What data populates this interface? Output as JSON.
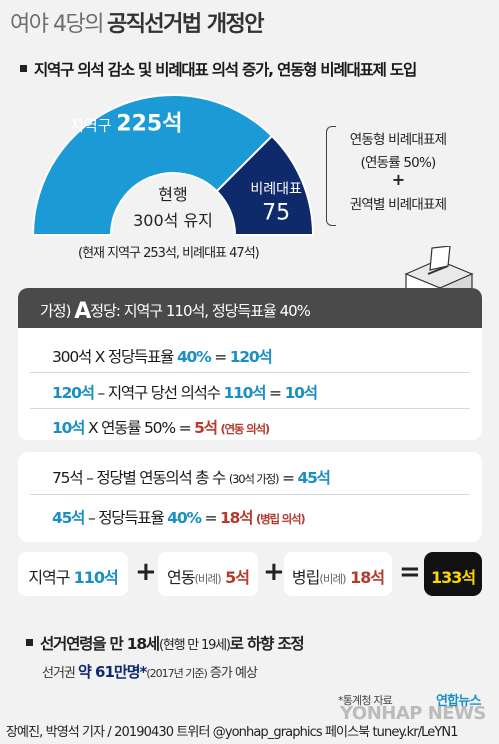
{
  "title": {
    "prefix": "여야 4당의",
    "main": "공직선거법 개정안"
  },
  "section1": {
    "heading": "지역구 의석 감소 및 비례대표 의석 증가, 연동형 비례대표제 도입"
  },
  "chart_data": {
    "type": "pie",
    "title": "",
    "center_label_line1": "현행",
    "center_label_line2": "300석 유지",
    "total": 300,
    "slices": [
      {
        "name": "지역구",
        "value": 225,
        "label": "지역구",
        "value_label": "225석",
        "color": "#1b9ad6"
      },
      {
        "name": "비례대표",
        "value": 75,
        "label": "비례대표",
        "value_label": "75",
        "color": "#0f2a6b"
      }
    ],
    "current_note": "(현재 지역구 253석, 비례대표 47석)"
  },
  "side_note": {
    "line1": "연동형 비례대표제",
    "line2": "(연동률 50%)",
    "plus": "+",
    "line3": "권역별 비례대표제"
  },
  "hypothesis": {
    "prefix": "가정)",
    "party": "A",
    "party_suffix": "정당",
    "detail": ": 지역구 110석, 정당득표율 40%"
  },
  "equations": [
    {
      "a": "300석 X 정당득표율 ",
      "b": "40%",
      "c": " = ",
      "d": "120석",
      "e": ""
    },
    {
      "a": "120석",
      "b": " – 지역구 당선 의석수 ",
      "c": "110석",
      "d": " = ",
      "e": "10석"
    },
    {
      "a": "10석",
      "b": " X 연동률 50% = ",
      "c": "5석",
      "d": "(연동 의석)",
      "e": ""
    },
    {
      "a": "75석 – 정당별 연동의석 총 수 ",
      "b": "(30석 가정)",
      "c": " = ",
      "d": "45석",
      "e": ""
    },
    {
      "a": "45석",
      "b": " – 정당득표율 ",
      "c": "40%",
      "d": " = ",
      "e": "18석",
      "f": "(병립 의석)"
    }
  ],
  "sum": {
    "t1": "지역구 ",
    "v1": "110석",
    "t2": "연동",
    "s2": "(비례)",
    "v2": " 5석",
    "t3": "병립",
    "s3": "(비례)",
    "v3": " 18석",
    "plus": "+",
    "equals": "=",
    "result": "133석"
  },
  "footer": {
    "heading": "선거연령을 만 18세",
    "heading_paren": "(현행 만 19세)",
    "heading_tail": "로 하향 조정",
    "sub1": "선거권 ",
    "sub_bold": "약 61만명*",
    "sub_paren": "(2017년 기준)",
    "sub2": " 증가 예상"
  },
  "source_note": "*통계청 자료",
  "logo": "연합뉴스",
  "watermark": "YONHAP NEWS",
  "credit": "장예진, 박영석 기자 / 20190430 트위터 @yonhap_graphics  페이스북 tuney.kr/LeYN1"
}
